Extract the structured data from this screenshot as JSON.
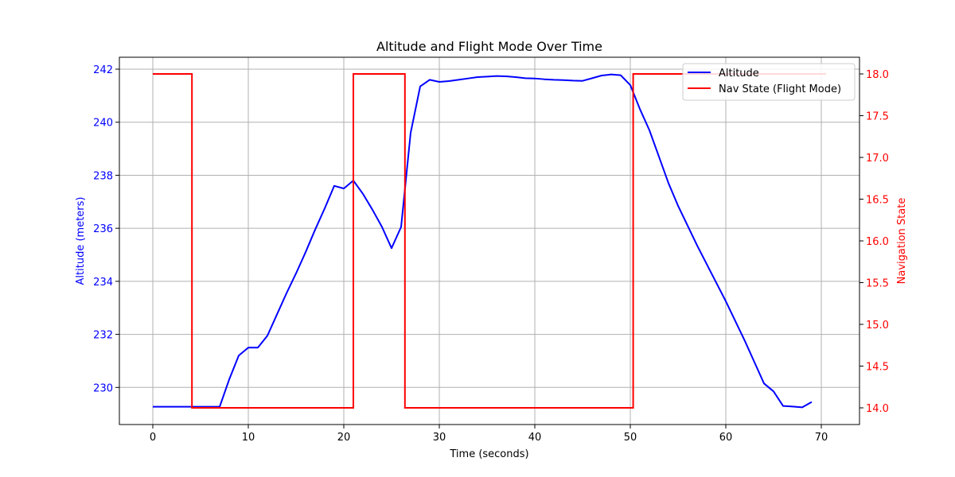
{
  "chart_data": {
    "type": "line",
    "title": "Altitude and Flight Mode Over Time",
    "xlabel": "Time (seconds)",
    "ylabel_left": "Altitude (meters)",
    "ylabel_right": "Navigation State",
    "xlim": [
      -3.5,
      74
    ],
    "ylim_left": [
      228.6,
      242.45
    ],
    "ylim_right": [
      13.8,
      18.2
    ],
    "x_ticks": [
      0,
      10,
      20,
      30,
      40,
      50,
      60,
      70
    ],
    "y_left_ticks": [
      230,
      232,
      234,
      236,
      238,
      240,
      242
    ],
    "y_right_ticks": [
      "14.0",
      "14.5",
      "15.0",
      "15.5",
      "16.0",
      "16.5",
      "17.0",
      "17.5",
      "18.0"
    ],
    "grid": true,
    "legend_position": "top-right",
    "colors": {
      "altitude": "#0000ff",
      "nav": "#ff0000",
      "left_axis": "#0000ff",
      "right_axis": "#ff0000"
    },
    "series": [
      {
        "name": "Altitude",
        "axis": "left",
        "x": [
          0,
          1,
          2,
          3,
          4,
          5,
          6,
          7,
          8,
          9,
          10,
          11,
          12,
          13,
          14,
          15,
          16,
          17,
          18,
          19,
          20,
          21,
          22,
          23,
          24,
          25,
          26,
          27,
          28,
          29,
          30,
          31,
          32,
          33,
          34,
          35,
          36,
          37,
          38,
          39,
          40,
          41,
          42,
          43,
          44,
          45,
          46,
          47,
          48,
          49,
          50,
          51,
          52,
          53,
          54,
          55,
          56,
          57,
          58,
          59,
          60,
          61,
          62,
          63,
          64,
          65,
          66,
          67,
          68,
          69
        ],
        "values": [
          229.27,
          229.27,
          229.27,
          229.27,
          229.27,
          229.27,
          229.27,
          229.27,
          230.3,
          231.2,
          231.5,
          231.5,
          231.95,
          232.75,
          233.55,
          234.3,
          235.1,
          235.95,
          236.75,
          237.6,
          237.5,
          237.8,
          237.3,
          236.7,
          236.05,
          235.25,
          236.05,
          239.6,
          241.35,
          241.6,
          241.52,
          241.55,
          241.6,
          241.65,
          241.7,
          241.72,
          241.74,
          241.73,
          241.7,
          241.66,
          241.65,
          241.62,
          241.6,
          241.59,
          241.57,
          241.56,
          241.66,
          241.76,
          241.8,
          241.77,
          241.4,
          240.5,
          239.7,
          238.7,
          237.7,
          236.85,
          236.1,
          235.35,
          234.65,
          233.95,
          233.25,
          232.5,
          231.75,
          230.95,
          230.15,
          229.85,
          229.3,
          229.28,
          229.25,
          229.45
        ]
      },
      {
        "name": "Nav State (Flight Mode)",
        "axis": "right",
        "step": "post",
        "x": [
          0,
          4.1,
          21.0,
          26.4,
          50.3,
          70.5
        ],
        "values": [
          18.0,
          14.0,
          18.0,
          14.0,
          18.0,
          18.0
        ]
      }
    ]
  }
}
